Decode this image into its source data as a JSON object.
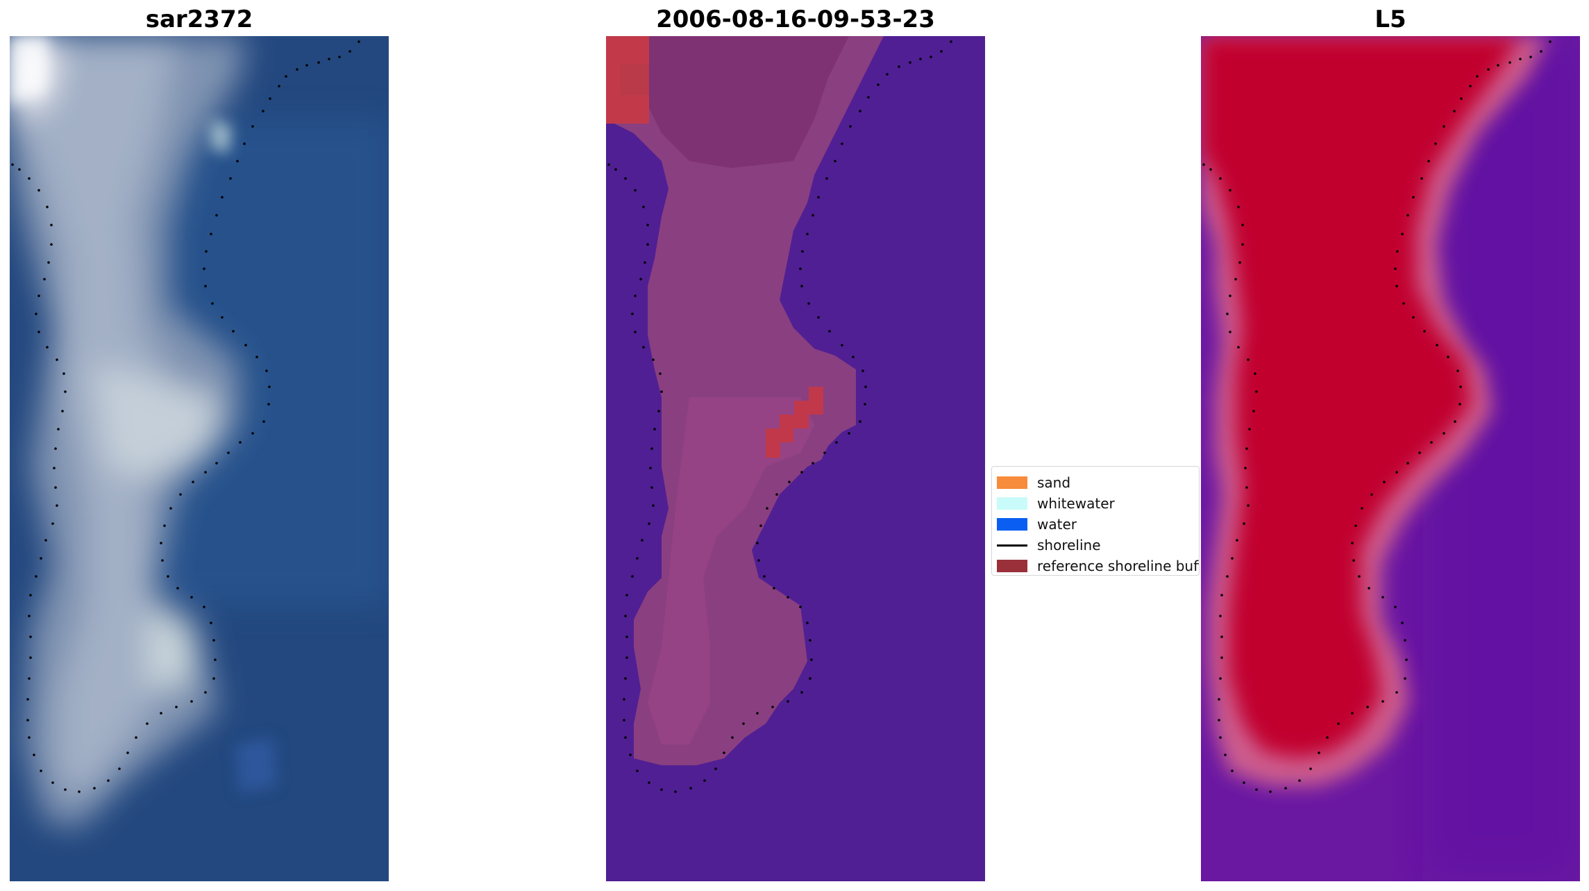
{
  "panels": [
    {
      "title": "sar2372"
    },
    {
      "title": "2006-08-16-09-53-23"
    },
    {
      "title": "L5"
    }
  ],
  "legend": {
    "items": [
      {
        "label": "sand",
        "kind": "patch",
        "color": "#f78c3c"
      },
      {
        "label": "whitewater",
        "kind": "patch",
        "color": "#c8fbf9"
      },
      {
        "label": "water",
        "kind": "patch",
        "color": "#0a5ef2"
      },
      {
        "label": "shoreline",
        "kind": "line",
        "color": "#000000"
      },
      {
        "label": "reference shoreline buffer",
        "kind": "patch",
        "color": "#99303a"
      }
    ]
  },
  "colors": {
    "water_rgb": "#23487f",
    "classified_background": "#501f93",
    "classified_land": "#8a3f80",
    "buffer_red": "#bb3a4a",
    "mndwi_land": "#c1052f",
    "mndwi_water": "#6a17a2",
    "shoreline_dots": "#000000"
  }
}
